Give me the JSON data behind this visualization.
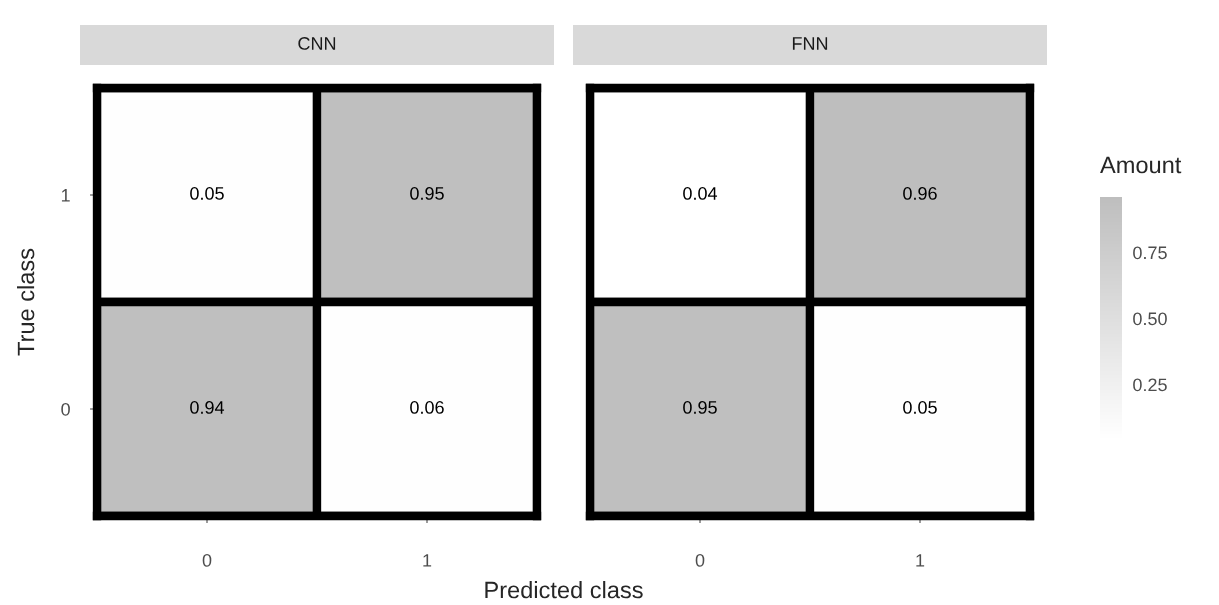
{
  "chart_data": [
    {
      "type": "heatmap",
      "title": "CNN",
      "xlabel": "Predicted class",
      "ylabel": "True class",
      "categories": [
        "0",
        "1"
      ],
      "y_categories": [
        "1",
        "0"
      ],
      "cells": [
        [
          0.05,
          0.95
        ],
        [
          0.94,
          0.06
        ]
      ],
      "data_labels": true
    },
    {
      "type": "heatmap",
      "title": "FNN",
      "categories": [
        "0",
        "1"
      ],
      "y_categories": [
        "1",
        "0"
      ],
      "cells": [
        [
          0.04,
          0.96
        ],
        [
          0.95,
          0.05
        ]
      ],
      "data_labels": true,
      "tick_labels": "x",
      "clabel": "Amount",
      "clim": [
        0.04,
        0.96
      ],
      "cticks": [
        0.25,
        {
          "value": 0.5,
          "label": "0.50"
        },
        0.75
      ]
    }
  ]
}
